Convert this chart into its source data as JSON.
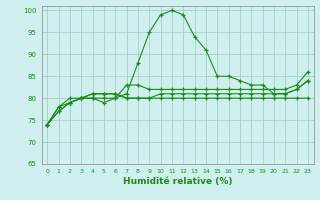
{
  "xlabel": "Humidité relative (%)",
  "ylabel": "",
  "bg_color": "#cff0ee",
  "line_color": "#1a8c1a",
  "marker_color": "#1a8c1a",
  "grid_color": "#99ccbb",
  "xlim": [
    -0.5,
    23.5
  ],
  "ylim": [
    65,
    101
  ],
  "xticks": [
    0,
    1,
    2,
    3,
    4,
    5,
    6,
    7,
    8,
    9,
    10,
    11,
    12,
    13,
    14,
    15,
    16,
    17,
    18,
    19,
    20,
    21,
    22,
    23
  ],
  "yticks": [
    65,
    70,
    75,
    80,
    85,
    90,
    95,
    100
  ],
  "series": [
    [
      74,
      78,
      80,
      80,
      80,
      80,
      80,
      81,
      88,
      95,
      99,
      100,
      99,
      94,
      91,
      85,
      85,
      84,
      83,
      83,
      81,
      81,
      82,
      84
    ],
    [
      74,
      78,
      79,
      80,
      80,
      79,
      80,
      83,
      83,
      82,
      82,
      82,
      82,
      82,
      82,
      82,
      82,
      82,
      82,
      82,
      82,
      82,
      83,
      86
    ],
    [
      74,
      77,
      79,
      80,
      81,
      81,
      81,
      80,
      80,
      80,
      80,
      80,
      80,
      80,
      80,
      80,
      80,
      80,
      80,
      80,
      80,
      80,
      80,
      80
    ],
    [
      74,
      77,
      79,
      80,
      81,
      81,
      81,
      80,
      80,
      80,
      81,
      81,
      81,
      81,
      81,
      81,
      81,
      81,
      81,
      81,
      81,
      81,
      82,
      84
    ]
  ]
}
